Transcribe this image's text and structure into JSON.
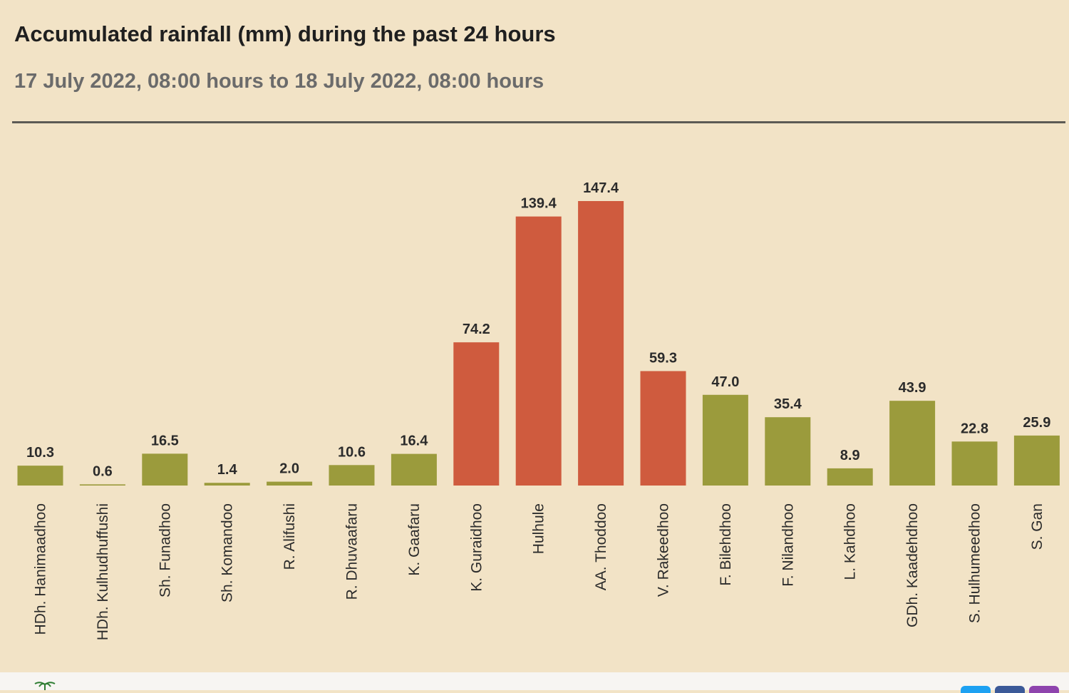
{
  "header": {
    "title": "Accumulated rainfall (mm) during the past 24 hours",
    "subtitle": "17 July 2022, 08:00 hours to 18 July 2022, 08:00 hours"
  },
  "colors": {
    "background": "#f2e3c6",
    "normal_bar": "#9b9b3c",
    "high_bar": "#cf5b3e",
    "divider": "#5c5a55",
    "label_text": "#2b2b2b"
  },
  "chart_data": {
    "type": "bar",
    "title": "Accumulated rainfall (mm) during the past 24 hours",
    "subtitle": "17 July 2022, 08:00 hours to 18 July 2022, 08:00 hours",
    "xlabel": "",
    "ylabel": "",
    "ylim": [
      0,
      160
    ],
    "grid": false,
    "categories": [
      "HDh. Hanimaadhoo",
      "HDh. Kulhudhuffushi",
      "Sh. Funadhoo",
      "Sh. Komandoo",
      "R. Alifushi",
      "R. Dhuvaafaru",
      "K. Gaafaru",
      "K. Guraidhoo",
      "Hulhule",
      "AA. Thoddoo",
      "V. Rakeedhoo",
      "F. Bilehdhoo",
      "F. Nilandhoo",
      "L. Kahdhoo",
      "GDh. Kaadehdhoo",
      "S. Hulhumeedhoo",
      "S. Gan"
    ],
    "values": [
      10.3,
      0.6,
      16.5,
      1.4,
      2.0,
      10.6,
      16.4,
      74.2,
      139.4,
      147.4,
      59.3,
      47.0,
      35.4,
      8.9,
      43.9,
      22.8,
      25.9
    ],
    "value_labels": [
      "10.3",
      "0.6",
      "16.5",
      "1.4",
      "2.0",
      "10.6",
      "16.4",
      "74.2",
      "139.4",
      "147.4",
      "59.3",
      "47.0",
      "35.4",
      "8.9",
      "43.9",
      "22.8",
      "25.9"
    ],
    "highlight": [
      false,
      false,
      false,
      false,
      false,
      false,
      false,
      true,
      true,
      true,
      true,
      false,
      false,
      false,
      false,
      false,
      false
    ]
  }
}
